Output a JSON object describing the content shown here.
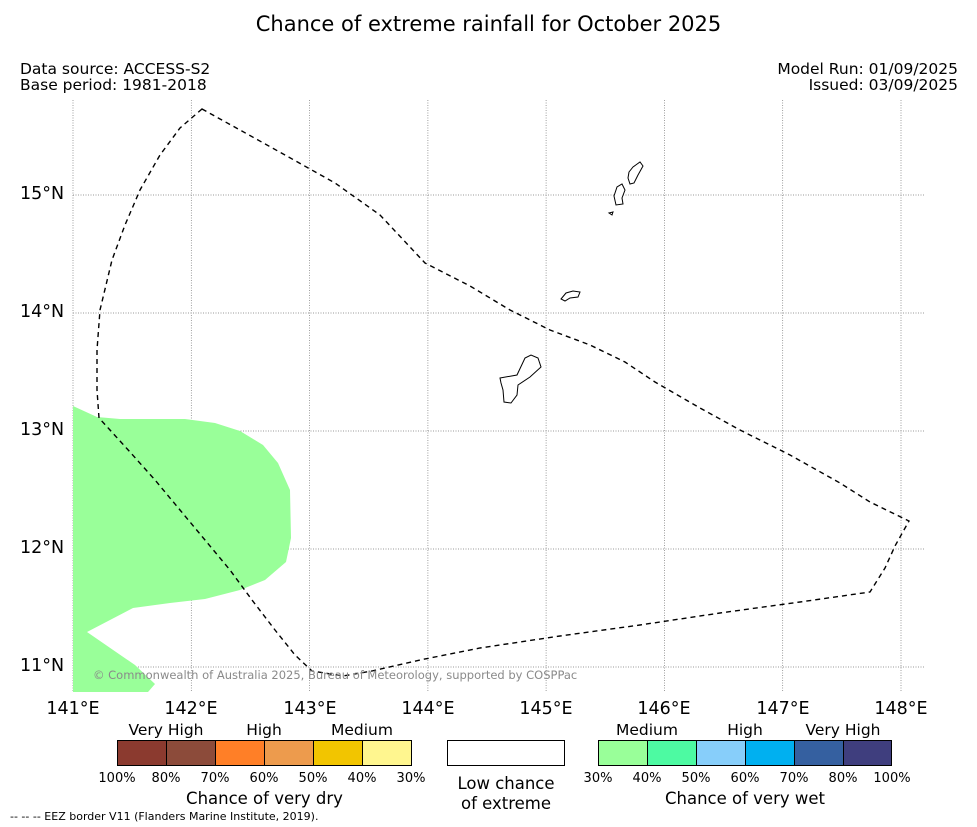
{
  "title": "Chance of extreme rainfall for October 2025",
  "meta": {
    "data_source": "Data source: ACCESS-S2",
    "base_period": "Base period: 1981-2018",
    "model_run": "Model Run: 01/09/2025",
    "issued": "Issued: 03/09/2025"
  },
  "map": {
    "x_ticks": [
      "141°E",
      "142°E",
      "143°E",
      "144°E",
      "145°E",
      "146°E",
      "147°E",
      "148°E"
    ],
    "y_ticks": [
      "15°N",
      "14°N",
      "13°N",
      "12°N",
      "11°N"
    ],
    "lon_range": [
      141,
      148.2
    ],
    "lat_range": [
      10.8,
      15.8
    ],
    "copyright": "© Commonwealth of Australia 2025, Bureau of Meteorology, supported by COSPPac",
    "wet_area_color": "#99ff99"
  },
  "legend": {
    "dry": {
      "categories": [
        "Very High",
        "High",
        "Medium"
      ],
      "percent_labels": [
        "100%",
        "80%",
        "70%",
        "60%",
        "50%",
        "40%",
        "30%"
      ],
      "colors": [
        "#8b3a2f",
        "#8c4b3a",
        "#ff7f27",
        "#ed9b4d",
        "#f2c500",
        "#fff68f"
      ],
      "title": "Chance of very dry"
    },
    "low": {
      "line1": "Low chance",
      "line2": "of extreme"
    },
    "wet": {
      "categories": [
        "Medium",
        "High",
        "Very High"
      ],
      "percent_labels": [
        "30%",
        "40%",
        "50%",
        "60%",
        "70%",
        "80%",
        "100%"
      ],
      "colors": [
        "#99ff99",
        "#4dfaa2",
        "#87cefa",
        "#00b0f0",
        "#3560a0",
        "#3f3e7e"
      ],
      "title": "Chance of very wet"
    }
  },
  "footer": "--  --  -- EEZ border V11 (Flanders Marine Institute, 2019)."
}
